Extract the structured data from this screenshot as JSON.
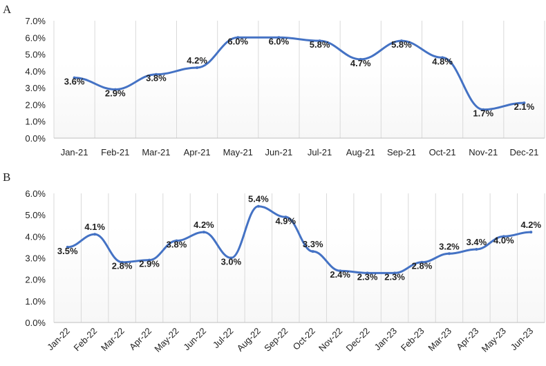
{
  "colors": {
    "line": "#4472c4",
    "text": "#222222",
    "grid": "#d9d9d9"
  },
  "chart_data": [
    {
      "panel": "A",
      "type": "line",
      "categories": [
        "Jan-21",
        "Feb-21",
        "Mar-21",
        "Apr-21",
        "May-21",
        "Jun-21",
        "Jul-21",
        "Aug-21",
        "Sep-21",
        "Oct-21",
        "Nov-21",
        "Dec-21"
      ],
      "values": [
        3.6,
        2.9,
        3.8,
        4.2,
        6.0,
        6.0,
        5.8,
        4.7,
        5.8,
        4.8,
        1.7,
        2.1
      ],
      "data_labels": [
        "3.6%",
        "2.9%",
        "3.8%",
        "4.2%",
        "6.0%",
        "6.0%",
        "5.8%",
        "4.7%",
        "5.8%",
        "4.8%",
        "1.7%",
        "2.1%"
      ],
      "ylim": [
        0,
        7
      ],
      "yticks": [
        "0.0%",
        "1.0%",
        "2.0%",
        "3.0%",
        "4.0%",
        "5.0%",
        "6.0%",
        "7.0%"
      ],
      "grid": "vertical"
    },
    {
      "panel": "B",
      "type": "line",
      "categories": [
        "Jan-22",
        "Feb-22",
        "Mar-22",
        "Apr-22",
        "May-22",
        "Jun-22",
        "Jul-22",
        "Aug-22",
        "Sep-22",
        "Oct-22",
        "Nov-22",
        "Dec-22",
        "Jan-23",
        "Feb-23",
        "Mar-23",
        "Apr-23",
        "May-23",
        "Jun-23"
      ],
      "values": [
        3.5,
        4.1,
        2.8,
        2.9,
        3.8,
        4.2,
        3.0,
        5.4,
        4.9,
        3.3,
        2.4,
        2.3,
        2.3,
        2.8,
        3.2,
        3.4,
        4.0,
        4.2
      ],
      "data_labels": [
        "3.5%",
        "4.1%",
        "2.8%",
        "2.9%",
        "3.8%",
        "4.2%",
        "3.0%",
        "5.4%",
        "4.9%",
        "3.3%",
        "2.4%",
        "2.3%",
        "2.3%",
        "2.8%",
        "3.2%",
        "3.4%",
        "4.0%",
        "4.2%"
      ],
      "ylim": [
        0,
        6
      ],
      "yticks": [
        "0.0%",
        "1.0%",
        "2.0%",
        "3.0%",
        "4.0%",
        "5.0%",
        "6.0%"
      ],
      "grid": "vertical"
    }
  ]
}
